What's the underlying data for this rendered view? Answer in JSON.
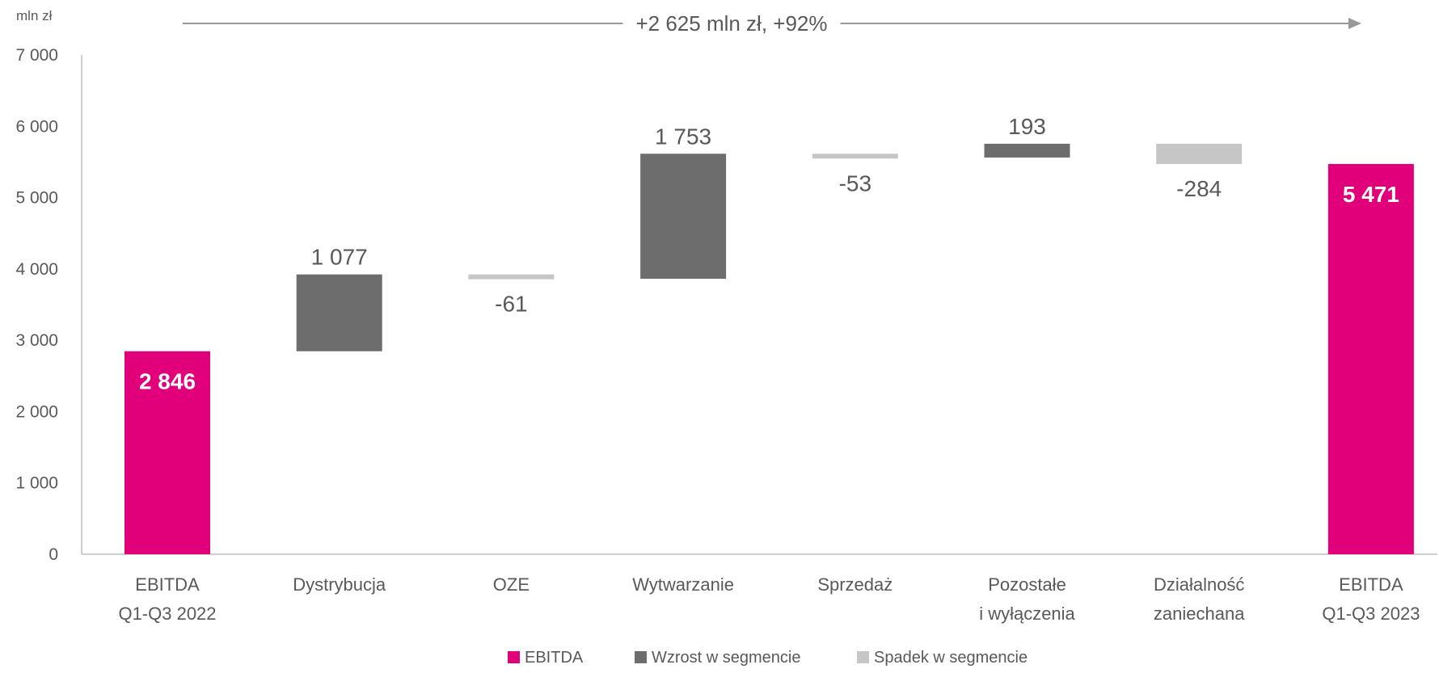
{
  "chart_data": {
    "type": "bar",
    "subtype": "waterfall",
    "unit_label": "mln zł",
    "annotation": "+2 625 mln zł, +92%",
    "ylim": [
      0,
      7000
    ],
    "yticks": [
      0,
      1000,
      2000,
      3000,
      4000,
      5000,
      6000,
      7000
    ],
    "ytick_labels": [
      "0",
      "1 000",
      "2 000",
      "3 000",
      "4 000",
      "5 000",
      "6 000",
      "7 000"
    ],
    "grid": false,
    "legend_position": "bottom",
    "categories": [
      [
        "EBITDA",
        "Q1-Q3 2022"
      ],
      [
        "Dystrybucja"
      ],
      [
        "OZE"
      ],
      [
        "Wytwarzanie"
      ],
      [
        "Sprzedaż"
      ],
      [
        "Pozostałe",
        "i wyłączenia"
      ],
      [
        "Działalność",
        "zaniechana"
      ],
      [
        "EBITDA",
        "Q1-Q3 2023"
      ]
    ],
    "bars": [
      {
        "kind": "total",
        "start": 0,
        "end": 2846,
        "label": "2 846"
      },
      {
        "kind": "increase",
        "start": 2846,
        "end": 3923,
        "label": "1 077"
      },
      {
        "kind": "decrease",
        "start": 3923,
        "end": 3862,
        "label": "-61"
      },
      {
        "kind": "increase",
        "start": 3862,
        "end": 5615,
        "label": "1 753"
      },
      {
        "kind": "decrease",
        "start": 5615,
        "end": 5562,
        "label": "-53"
      },
      {
        "kind": "increase",
        "start": 5562,
        "end": 5755,
        "label": "193"
      },
      {
        "kind": "decrease",
        "start": 5755,
        "end": 5471,
        "label": "-284"
      },
      {
        "kind": "total",
        "start": 0,
        "end": 5471,
        "label": "5 471"
      }
    ],
    "legend": [
      {
        "kind": "total",
        "label": "EBITDA"
      },
      {
        "kind": "increase",
        "label": "Wzrost w segmencie"
      },
      {
        "kind": "decrease",
        "label": "Spadek w segmencie"
      }
    ],
    "colors": {
      "total": "#e2007a",
      "increase": "#6d6d6d",
      "decrease": "#c6c6c6",
      "axis": "#bfbfbf",
      "arrow": "#999999"
    }
  }
}
